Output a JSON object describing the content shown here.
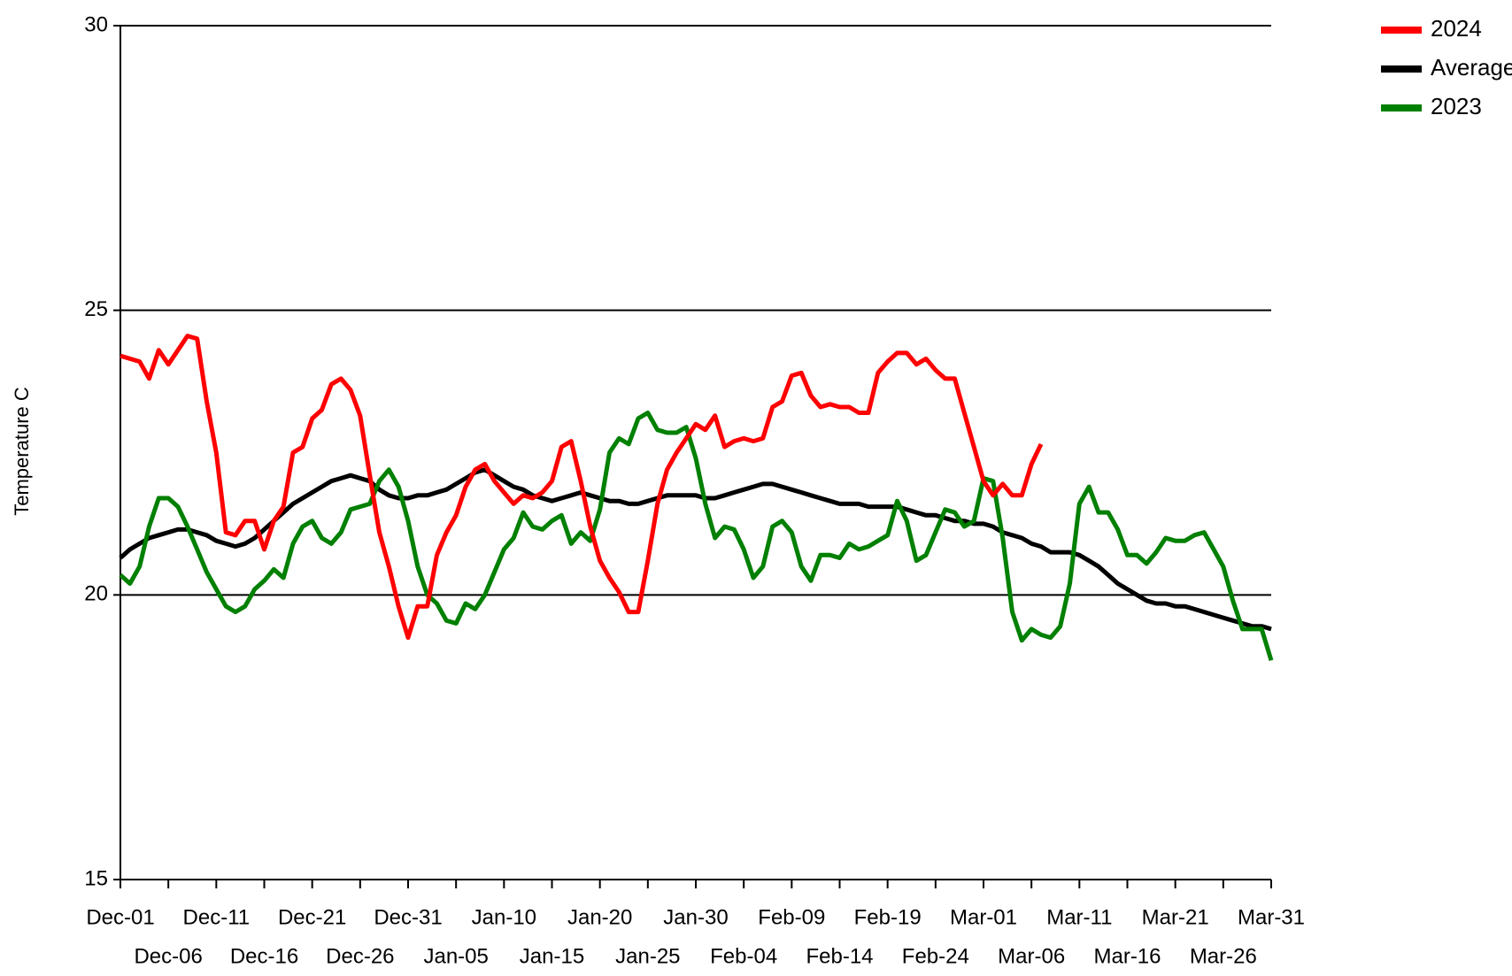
{
  "chart_data": {
    "type": "line",
    "y_label": "Temperature C",
    "categories": [
      "Dec-01",
      null,
      null,
      null,
      null,
      "Dec-06",
      null,
      null,
      null,
      null,
      "Dec-11",
      null,
      null,
      null,
      null,
      "Dec-16",
      null,
      null,
      null,
      null,
      "Dec-21",
      null,
      null,
      null,
      null,
      "Dec-26",
      null,
      null,
      null,
      null,
      "Dec-31",
      null,
      null,
      null,
      null,
      "Jan-05",
      null,
      null,
      null,
      null,
      "Jan-10",
      null,
      null,
      null,
      null,
      "Jan-15",
      null,
      null,
      null,
      null,
      "Jan-20",
      null,
      null,
      null,
      null,
      "Jan-25",
      null,
      null,
      null,
      null,
      "Jan-30",
      null,
      null,
      null,
      null,
      "Feb-04",
      null,
      null,
      null,
      null,
      "Feb-09",
      null,
      null,
      null,
      null,
      "Feb-14",
      null,
      null,
      null,
      null,
      "Feb-19",
      null,
      null,
      null,
      null,
      "Feb-24",
      null,
      null,
      null,
      null,
      "Mar-01",
      null,
      null,
      null,
      null,
      "Mar-06",
      null,
      null,
      null,
      null,
      "Mar-11",
      null,
      null,
      null,
      null,
      "Mar-16",
      null,
      null,
      null,
      null,
      "Mar-21",
      null,
      null,
      null,
      null,
      "Mar-26",
      null,
      null,
      null,
      null,
      "Mar-31"
    ],
    "series": [
      {
        "name": "2024",
        "color": "#ff0000",
        "values": [
          24.2,
          24.15,
          24.1,
          23.8,
          24.3,
          24.05,
          24.3,
          24.55,
          24.5,
          23.4,
          22.5,
          21.1,
          21.05,
          21.3,
          21.3,
          20.8,
          21.3,
          21.55,
          22.5,
          22.6,
          23.1,
          23.25,
          23.7,
          23.8,
          23.6,
          23.15,
          22.1,
          21.1,
          20.5,
          19.8,
          19.25,
          19.8,
          19.8,
          20.7,
          21.1,
          21.4,
          21.9,
          22.2,
          22.3,
          22.0,
          21.8,
          21.6,
          21.75,
          21.7,
          21.8,
          22.0,
          22.6,
          22.7,
          22.0,
          21.2,
          20.6,
          20.3,
          20.05,
          19.7,
          19.7,
          20.6,
          21.6,
          22.2,
          22.5,
          22.75,
          23.0,
          22.9,
          23.15,
          22.6,
          22.7,
          22.75,
          22.7,
          22.75,
          23.3,
          23.4,
          23.85,
          23.9,
          23.5,
          23.3,
          23.35,
          23.3,
          23.3,
          23.2,
          23.2,
          23.9,
          24.1,
          24.25,
          24.25,
          24.05,
          24.15,
          23.95,
          23.8,
          23.8,
          23.2,
          22.6,
          22.0,
          21.75,
          21.95,
          21.75,
          21.75,
          22.3,
          22.65,
          null,
          null,
          null,
          null,
          null,
          null,
          null,
          null,
          null,
          null,
          null,
          null,
          null,
          null,
          null,
          null,
          null,
          null,
          null,
          null,
          null,
          null,
          null,
          null
        ]
      },
      {
        "name": "Average",
        "color": "#000000",
        "values": [
          20.65,
          20.8,
          20.9,
          21.0,
          21.05,
          21.1,
          21.15,
          21.15,
          21.1,
          21.05,
          20.95,
          20.9,
          20.85,
          20.9,
          21.0,
          21.15,
          21.3,
          21.45,
          21.6,
          21.7,
          21.8,
          21.9,
          22.0,
          22.05,
          22.1,
          22.05,
          22.0,
          21.85,
          21.75,
          21.7,
          21.7,
          21.75,
          21.75,
          21.8,
          21.85,
          21.95,
          22.05,
          22.15,
          22.2,
          22.1,
          22.0,
          21.9,
          21.85,
          21.75,
          21.7,
          21.65,
          21.7,
          21.75,
          21.8,
          21.75,
          21.7,
          21.65,
          21.65,
          21.6,
          21.6,
          21.65,
          21.7,
          21.75,
          21.75,
          21.75,
          21.75,
          21.7,
          21.7,
          21.75,
          21.8,
          21.85,
          21.9,
          21.95,
          21.95,
          21.9,
          21.85,
          21.8,
          21.75,
          21.7,
          21.65,
          21.6,
          21.6,
          21.6,
          21.55,
          21.55,
          21.55,
          21.55,
          21.5,
          21.45,
          21.4,
          21.4,
          21.35,
          21.3,
          21.3,
          21.25,
          21.25,
          21.2,
          21.1,
          21.05,
          21.0,
          20.9,
          20.85,
          20.75,
          20.75,
          20.75,
          20.7,
          20.6,
          20.5,
          20.35,
          20.2,
          20.1,
          20.0,
          19.9,
          19.85,
          19.85,
          19.8,
          19.8,
          19.75,
          19.7,
          19.65,
          19.6,
          19.55,
          19.5,
          19.45,
          19.45,
          19.4
        ]
      },
      {
        "name": "2023",
        "color": "#008000",
        "values": [
          20.35,
          20.2,
          20.5,
          21.2,
          21.7,
          21.7,
          21.55,
          21.2,
          20.8,
          20.4,
          20.1,
          19.8,
          19.7,
          19.8,
          20.1,
          20.25,
          20.45,
          20.3,
          20.9,
          21.2,
          21.3,
          21.0,
          20.9,
          21.1,
          21.5,
          21.55,
          21.6,
          22.0,
          22.2,
          21.9,
          21.3,
          20.5,
          20.0,
          19.85,
          19.55,
          19.5,
          19.85,
          19.75,
          20.0,
          20.4,
          20.8,
          21.0,
          21.45,
          21.2,
          21.15,
          21.3,
          21.4,
          20.9,
          21.1,
          20.95,
          21.5,
          22.5,
          22.75,
          22.65,
          23.1,
          23.2,
          22.9,
          22.85,
          22.85,
          22.95,
          22.4,
          21.6,
          21.0,
          21.2,
          21.15,
          20.8,
          20.3,
          20.5,
          21.2,
          21.3,
          21.1,
          20.5,
          20.25,
          20.7,
          20.7,
          20.65,
          20.9,
          20.8,
          20.85,
          20.95,
          21.05,
          21.65,
          21.3,
          20.6,
          20.7,
          21.1,
          21.5,
          21.45,
          21.2,
          21.3,
          22.05,
          22.0,
          21.0,
          19.7,
          19.2,
          19.4,
          19.3,
          19.25,
          19.45,
          20.2,
          21.6,
          21.9,
          21.45,
          21.45,
          21.15,
          20.7,
          20.7,
          20.55,
          20.75,
          21.0,
          20.95,
          20.95,
          21.05,
          21.1,
          20.8,
          20.5,
          19.9,
          19.4,
          19.4,
          19.4,
          18.85
        ]
      }
    ],
    "ylim": [
      15,
      30
    ],
    "yticks": [
      15,
      20,
      25,
      30
    ],
    "grid": true,
    "legend": "top-right"
  }
}
